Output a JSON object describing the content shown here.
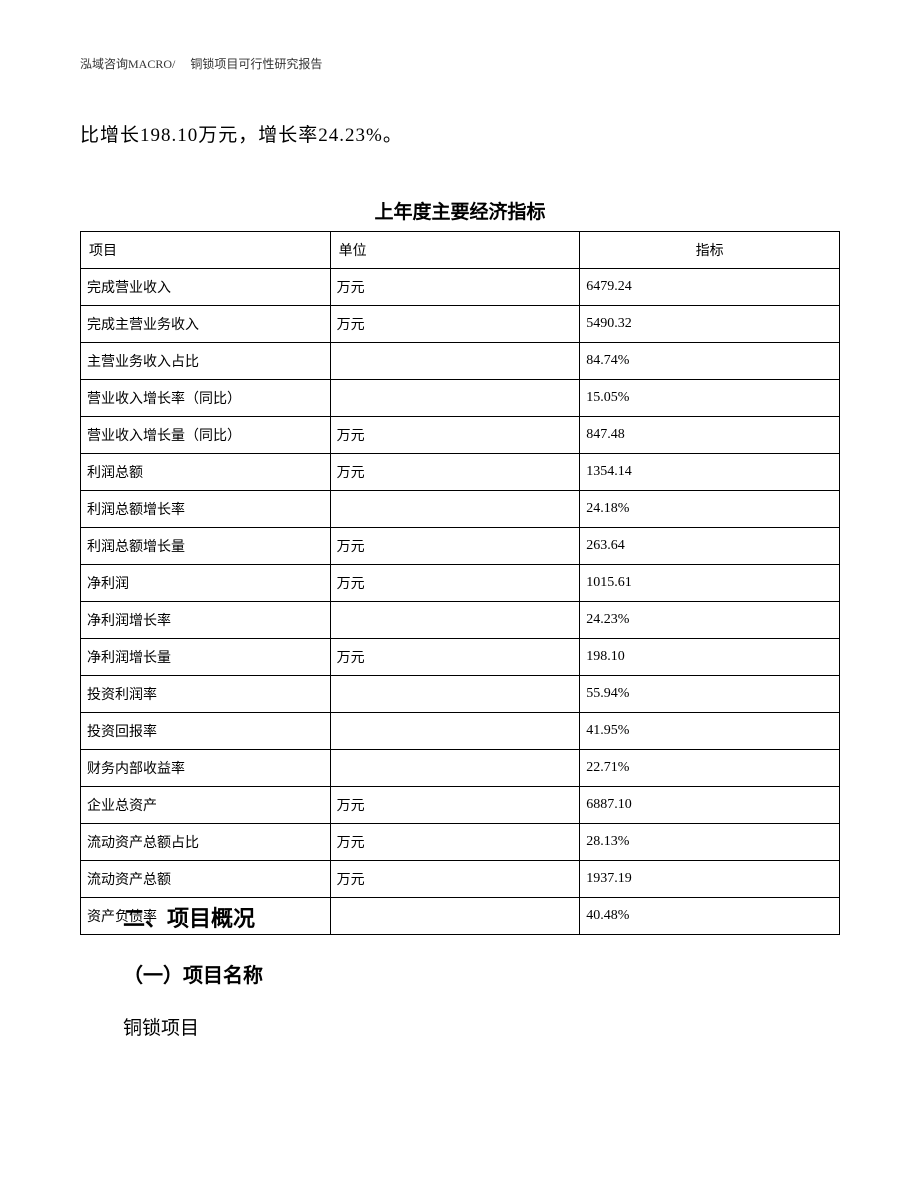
{
  "header": "泓域咨询MACRO/　 铜锁项目可行性研究报告",
  "intro": "比增长198.10万元，增长率24.23%。",
  "table": {
    "title": "上年度主要经济指标",
    "columns": [
      "项目",
      "单位",
      "指标"
    ],
    "rows": [
      {
        "item": "完成营业收入",
        "unit": "万元",
        "value": "6479.24"
      },
      {
        "item": "完成主营业务收入",
        "unit": "万元",
        "value": "5490.32"
      },
      {
        "item": "主营业务收入占比",
        "unit": "",
        "value": "84.74%"
      },
      {
        "item": "营业收入增长率（同比）",
        "unit": "",
        "value": "15.05%"
      },
      {
        "item": "营业收入增长量（同比）",
        "unit": "万元",
        "value": "847.48"
      },
      {
        "item": "利润总额",
        "unit": "万元",
        "value": "1354.14"
      },
      {
        "item": "利润总额增长率",
        "unit": "",
        "value": "24.18%"
      },
      {
        "item": "利润总额增长量",
        "unit": "万元",
        "value": "263.64"
      },
      {
        "item": "净利润",
        "unit": "万元",
        "value": "1015.61"
      },
      {
        "item": "净利润增长率",
        "unit": "",
        "value": "24.23%"
      },
      {
        "item": "净利润增长量",
        "unit": "万元",
        "value": "198.10"
      },
      {
        "item": "投资利润率",
        "unit": "",
        "value": "55.94%"
      },
      {
        "item": "投资回报率",
        "unit": "",
        "value": "41.95%"
      },
      {
        "item": "财务内部收益率",
        "unit": "",
        "value": "22.71%"
      },
      {
        "item": "企业总资产",
        "unit": "万元",
        "value": "6887.10"
      },
      {
        "item": "流动资产总额占比",
        "unit": "万元",
        "value": "28.13%"
      },
      {
        "item": "流动资产总额",
        "unit": "万元",
        "value": "1937.19"
      },
      {
        "item": "资产负债率",
        "unit": "",
        "value": "40.48%"
      }
    ]
  },
  "section": {
    "heading": "二、项目概况",
    "subheading": "（一）项目名称",
    "body": "铜锁项目"
  }
}
